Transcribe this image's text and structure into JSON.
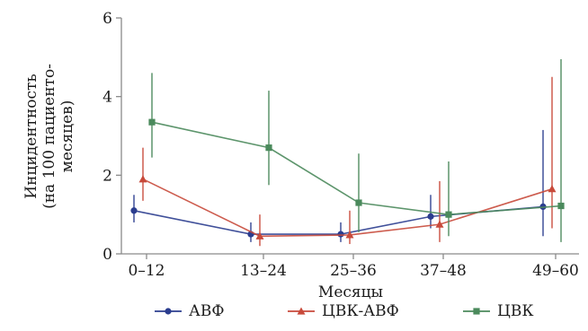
{
  "chart_data": {
    "type": "line",
    "xlabel": "Месяцы",
    "ylabel_lines": [
      "Инцидентность",
      "(на 100 пациенто-",
      "месяцев)"
    ],
    "categories": [
      "0–12",
      "13–24",
      "25–36",
      "37–48",
      "49–60"
    ],
    "ylim": [
      0,
      6
    ],
    "yticks": [
      "0",
      "2",
      "4",
      "6"
    ],
    "grid": false,
    "legend_position": "bottom",
    "series": [
      {
        "name": "АВФ",
        "color": "#2b3d8f",
        "marker": "circle",
        "values": [
          1.1,
          0.5,
          0.5,
          0.95,
          1.2
        ],
        "lower": [
          0.8,
          0.3,
          0.3,
          0.65,
          0.45
        ],
        "upper": [
          1.5,
          0.8,
          0.8,
          1.5,
          3.15
        ]
      },
      {
        "name": "ЦВК-АВФ",
        "color": "#c84a3b",
        "marker": "triangle",
        "values": [
          1.9,
          0.45,
          0.48,
          0.75,
          1.65
        ],
        "lower": [
          1.35,
          0.2,
          0.25,
          0.3,
          0.65
        ],
        "upper": [
          2.7,
          1.0,
          1.1,
          1.85,
          4.5
        ]
      },
      {
        "name": "ЦВК",
        "color": "#4b8a5c",
        "marker": "square",
        "values": [
          3.35,
          2.7,
          1.3,
          1.0,
          1.22
        ],
        "lower": [
          2.45,
          1.75,
          0.55,
          0.45,
          0.3
        ],
        "upper": [
          4.6,
          4.15,
          2.55,
          2.35,
          4.95
        ]
      }
    ]
  }
}
